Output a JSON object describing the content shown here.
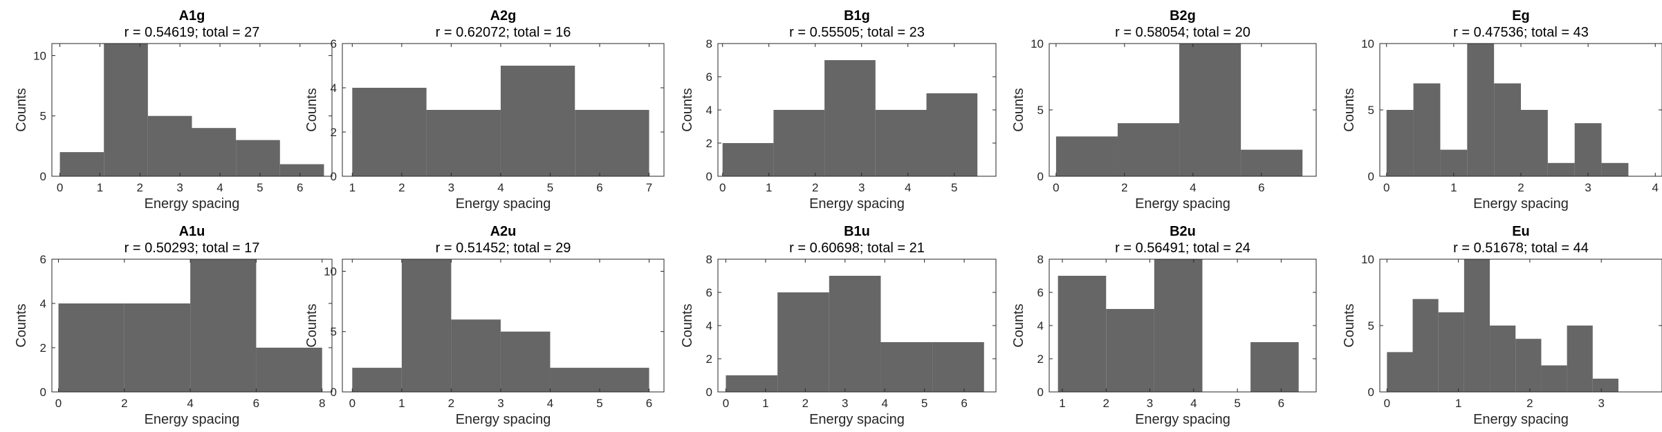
{
  "chart_data": [
    {
      "type": "bar",
      "title": "A1g",
      "subtitle": "r = 0.54619; total = 27",
      "xlabel": "Energy spacing",
      "ylabel": "Counts",
      "xlim": [
        -0.2,
        6.8
      ],
      "ylim": [
        0,
        11
      ],
      "xticks": [
        0,
        1,
        2,
        3,
        4,
        5,
        6
      ],
      "yticks": [
        0,
        5,
        10
      ],
      "bins": [
        [
          0,
          1.1,
          2
        ],
        [
          1.1,
          2.2,
          11
        ],
        [
          2.2,
          3.3,
          5
        ],
        [
          3.3,
          4.4,
          4
        ],
        [
          4.4,
          5.5,
          3
        ],
        [
          5.5,
          6.6,
          1
        ]
      ]
    },
    {
      "type": "bar",
      "title": "A2g",
      "subtitle": "r = 0.62072; total = 16",
      "xlabel": "Energy spacing",
      "ylabel": "Counts",
      "xlim": [
        0.8,
        7.3
      ],
      "ylim": [
        0,
        6
      ],
      "xticks": [
        1,
        2,
        3,
        4,
        5,
        6,
        7
      ],
      "yticks": [
        0,
        2,
        4,
        6
      ],
      "bins": [
        [
          1,
          2.5,
          4
        ],
        [
          2.5,
          4,
          3
        ],
        [
          4,
          5.5,
          5
        ],
        [
          5.5,
          7,
          3
        ]
      ]
    },
    {
      "type": "bar",
      "title": "B1g",
      "subtitle": "r = 0.55505; total = 23",
      "xlabel": "Energy spacing",
      "ylabel": "Counts",
      "xlim": [
        -0.1,
        5.9
      ],
      "ylim": [
        0,
        8
      ],
      "xticks": [
        0,
        1,
        2,
        3,
        4,
        5
      ],
      "yticks": [
        0,
        2,
        4,
        6,
        8
      ],
      "bins": [
        [
          0,
          1.1,
          2
        ],
        [
          1.1,
          2.2,
          4
        ],
        [
          2.2,
          3.3,
          7
        ],
        [
          3.3,
          4.4,
          4
        ],
        [
          4.4,
          5.5,
          5
        ]
      ]
    },
    {
      "type": "bar",
      "title": "B2g",
      "subtitle": "r = 0.58054; total = 20",
      "xlabel": "Energy spacing",
      "ylabel": "Counts",
      "xlim": [
        -0.2,
        7.6
      ],
      "ylim": [
        0,
        10
      ],
      "xticks": [
        0,
        2,
        4,
        6
      ],
      "yticks": [
        0,
        5,
        10
      ],
      "bins": [
        [
          0,
          1.8,
          3
        ],
        [
          1.8,
          3.6,
          4
        ],
        [
          3.6,
          5.4,
          10
        ],
        [
          5.4,
          7.2,
          2
        ]
      ]
    },
    {
      "type": "bar",
      "title": "Eg",
      "subtitle": "r = 0.47536; total = 43",
      "xlabel": "Energy spacing",
      "ylabel": "Counts",
      "xlim": [
        -0.1,
        4.1
      ],
      "ylim": [
        0,
        10
      ],
      "xticks": [
        0,
        1,
        2,
        3,
        4
      ],
      "yticks": [
        0,
        5,
        10
      ],
      "bins": [
        [
          0,
          0.4,
          5
        ],
        [
          0.4,
          0.8,
          7
        ],
        [
          0.8,
          1.2,
          2
        ],
        [
          1.2,
          1.6,
          10
        ],
        [
          1.6,
          2.0,
          7
        ],
        [
          2.0,
          2.4,
          5
        ],
        [
          2.4,
          2.8,
          1
        ],
        [
          2.8,
          3.2,
          4
        ],
        [
          3.2,
          3.6,
          1
        ]
      ]
    },
    {
      "type": "bar",
      "title": "A1u",
      "subtitle": "r = 0.50293; total = 17",
      "xlabel": "Energy spacing",
      "ylabel": "Counts",
      "xlim": [
        -0.2,
        8.3
      ],
      "ylim": [
        0,
        6
      ],
      "xticks": [
        0,
        2,
        4,
        6,
        8
      ],
      "yticks": [
        0,
        2,
        4,
        6
      ],
      "bins": [
        [
          0,
          2,
          4
        ],
        [
          2,
          4,
          4
        ],
        [
          4,
          6,
          6
        ],
        [
          6,
          8,
          2
        ]
      ]
    },
    {
      "type": "bar",
      "title": "A2u",
      "subtitle": "r = 0.51452; total = 29",
      "xlabel": "Energy spacing",
      "ylabel": "Counts",
      "xlim": [
        -0.2,
        6.3
      ],
      "ylim": [
        0,
        11
      ],
      "xticks": [
        0,
        1,
        2,
        3,
        4,
        5,
        6
      ],
      "yticks": [
        0,
        5,
        10
      ],
      "bins": [
        [
          0,
          1,
          2
        ],
        [
          1,
          2,
          11
        ],
        [
          2,
          3,
          6
        ],
        [
          3,
          4,
          5
        ],
        [
          4,
          5,
          2
        ],
        [
          5,
          6,
          2
        ]
      ]
    },
    {
      "type": "bar",
      "title": "B1u",
      "subtitle": "r = 0.60698; total = 21",
      "xlabel": "Energy spacing",
      "ylabel": "Counts",
      "xlim": [
        -0.2,
        6.8
      ],
      "ylim": [
        0,
        8
      ],
      "xticks": [
        0,
        1,
        2,
        3,
        4,
        5,
        6
      ],
      "yticks": [
        0,
        2,
        4,
        6,
        8
      ],
      "bins": [
        [
          0,
          1.3,
          1
        ],
        [
          1.3,
          2.6,
          6
        ],
        [
          2.6,
          3.9,
          7
        ],
        [
          3.9,
          5.2,
          3
        ],
        [
          5.2,
          6.5,
          3
        ]
      ]
    },
    {
      "type": "bar",
      "title": "B2u",
      "subtitle": "r = 0.56491; total = 24",
      "xlabel": "Energy spacing",
      "ylabel": "Counts",
      "xlim": [
        0.7,
        6.8
      ],
      "ylim": [
        0,
        8
      ],
      "xticks": [
        1,
        2,
        3,
        4,
        5,
        6
      ],
      "yticks": [
        0,
        2,
        4,
        6,
        8
      ],
      "bins": [
        [
          0.9,
          2.0,
          7
        ],
        [
          2.0,
          3.1,
          5
        ],
        [
          3.1,
          4.2,
          8
        ],
        [
          4.2,
          5.3,
          0
        ],
        [
          5.3,
          6.4,
          3
        ]
      ]
    },
    {
      "type": "bar",
      "title": "Eu",
      "subtitle": "r = 0.51678; total = 44",
      "xlabel": "Energy spacing",
      "ylabel": "Counts",
      "xlim": [
        -0.1,
        3.85
      ],
      "ylim": [
        0,
        10
      ],
      "xticks": [
        0,
        1,
        2,
        3
      ],
      "yticks": [
        0,
        5,
        10
      ],
      "bins": [
        [
          0,
          0.36,
          3
        ],
        [
          0.36,
          0.72,
          7
        ],
        [
          0.72,
          1.08,
          6
        ],
        [
          1.08,
          1.44,
          10
        ],
        [
          1.44,
          1.8,
          5
        ],
        [
          1.8,
          2.16,
          4
        ],
        [
          2.16,
          2.52,
          2
        ],
        [
          2.52,
          2.88,
          5
        ],
        [
          2.88,
          3.24,
          1
        ]
      ]
    }
  ]
}
